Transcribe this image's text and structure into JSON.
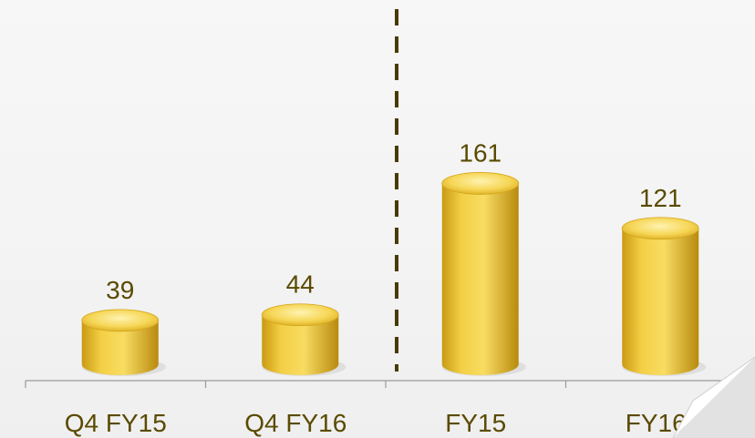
{
  "chart_data": {
    "type": "bar",
    "categories": [
      "Q4 FY15",
      "Q4 FY16",
      "FY15",
      "FY16"
    ],
    "values": [
      39,
      44,
      161,
      121
    ],
    "data_labels": [
      "39",
      "44",
      "161",
      "121"
    ],
    "title": "",
    "xlabel": "",
    "ylabel": "",
    "ylim": [
      0,
      300
    ],
    "grid": false,
    "legend": "none",
    "divider_between": [
      "Q4 FY16",
      "FY15"
    ],
    "colors": {
      "bar_light": "#fbe889",
      "bar_mid": "#e8bf2c",
      "bar_dark": "#b88a0e",
      "label_text": "#5a4a00",
      "axis": "#9a9a9a",
      "divider": "#4a3a00"
    }
  }
}
